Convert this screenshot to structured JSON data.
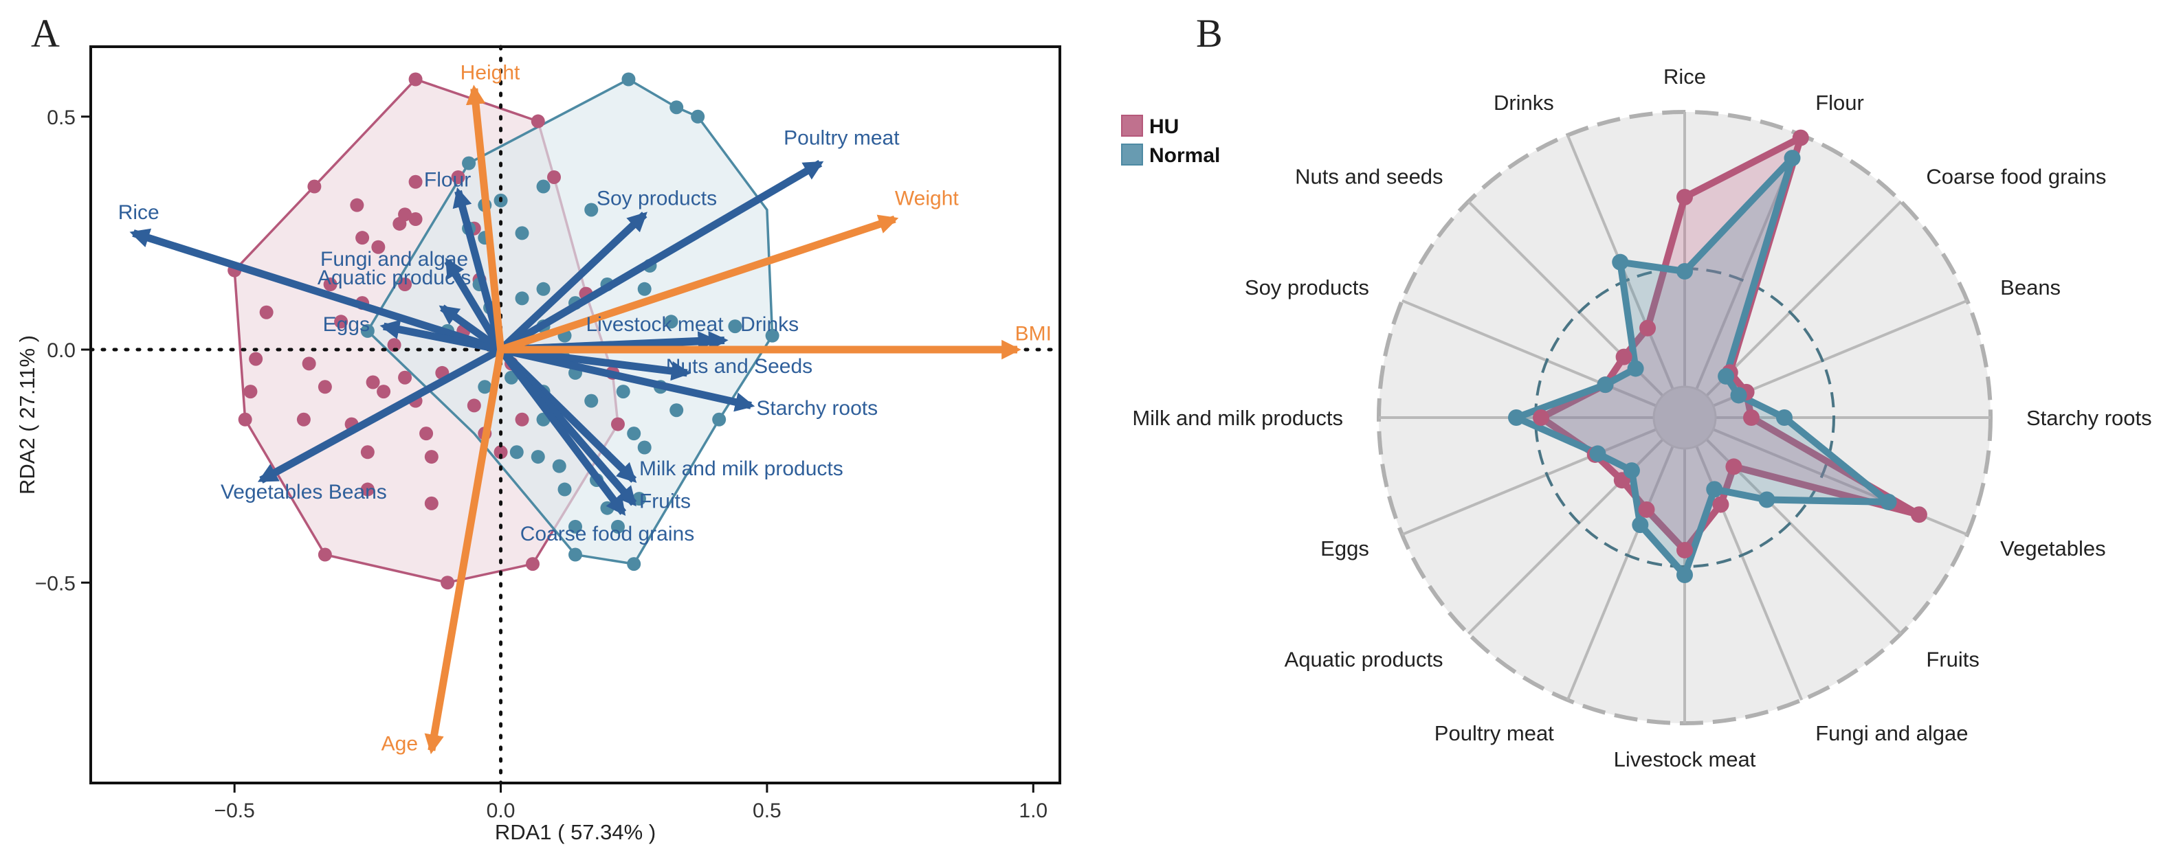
{
  "panels": {
    "a_label": "A",
    "b_label": "B"
  },
  "colors": {
    "hu": "#b5587a",
    "normal": "#4d8aa3",
    "hu_fill": "#f2e3e8",
    "normal_fill": "#dde9ee",
    "nutrient_arrow": "#2f5f9a",
    "body_arrow": "#ef8a3c",
    "radar_bg": "#ececec",
    "grid": "#b9b9b9"
  },
  "chart_data": [
    {
      "type": "scatter",
      "title": "",
      "xlabel": "RDA1 ( 57.34% )",
      "ylabel": "RDA2 ( 27.11% )",
      "xlim": [
        -0.77,
        1.05
      ],
      "ylim": [
        -0.93,
        0.65
      ],
      "xticks": [
        -0.5,
        0.0,
        0.5,
        1.0
      ],
      "xtick_labels": [
        "−0.5",
        "0.0",
        "0.5",
        "1.0"
      ],
      "yticks": [
        -0.5,
        0.0,
        0.5
      ],
      "ytick_labels": [
        "−0.5",
        "0.0",
        "0.5"
      ],
      "grid": false,
      "reference_lines": {
        "x": 0,
        "y": 0
      },
      "groups": [
        {
          "name": "HU",
          "hull": [
            [
              -0.16,
              0.58
            ],
            [
              0.07,
              0.49
            ],
            [
              0.1,
              0.37
            ],
            [
              0.16,
              0.12
            ],
            [
              0.21,
              -0.05
            ],
            [
              0.22,
              -0.16
            ],
            [
              0.06,
              -0.46
            ],
            [
              -0.1,
              -0.5
            ],
            [
              -0.33,
              -0.44
            ],
            [
              -0.48,
              -0.15
            ],
            [
              -0.5,
              0.17
            ]
          ],
          "points": [
            [
              -0.16,
              0.58
            ],
            [
              -0.35,
              0.35
            ],
            [
              -0.27,
              0.31
            ],
            [
              -0.18,
              0.29
            ],
            [
              -0.16,
              0.36
            ],
            [
              -0.08,
              0.37
            ],
            [
              -0.05,
              0.26
            ],
            [
              -0.23,
              0.22
            ],
            [
              -0.16,
              0.28
            ],
            [
              -0.19,
              0.27
            ],
            [
              -0.26,
              0.24
            ],
            [
              -0.32,
              0.14
            ],
            [
              -0.18,
              0.14
            ],
            [
              -0.04,
              0.15
            ],
            [
              -0.3,
              0.06
            ],
            [
              -0.44,
              0.08
            ],
            [
              -0.5,
              0.17
            ],
            [
              -0.46,
              -0.02
            ],
            [
              -0.36,
              -0.03
            ],
            [
              -0.24,
              -0.07
            ],
            [
              -0.18,
              -0.06
            ],
            [
              -0.11,
              -0.05
            ],
            [
              -0.47,
              -0.09
            ],
            [
              -0.33,
              -0.08
            ],
            [
              -0.22,
              -0.09
            ],
            [
              -0.16,
              -0.11
            ],
            [
              -0.48,
              -0.15
            ],
            [
              -0.37,
              -0.15
            ],
            [
              -0.28,
              -0.16
            ],
            [
              -0.14,
              -0.18
            ],
            [
              -0.05,
              -0.12
            ],
            [
              -0.03,
              -0.18
            ],
            [
              0.0,
              -0.22
            ],
            [
              0.04,
              -0.15
            ],
            [
              -0.25,
              -0.22
            ],
            [
              -0.13,
              -0.23
            ],
            [
              -0.25,
              -0.3
            ],
            [
              -0.13,
              -0.33
            ],
            [
              -0.33,
              -0.44
            ],
            [
              -0.1,
              -0.5
            ],
            [
              0.06,
              -0.46
            ],
            [
              0.07,
              0.49
            ],
            [
              0.1,
              0.37
            ],
            [
              0.16,
              0.12
            ],
            [
              0.21,
              -0.05
            ],
            [
              0.22,
              -0.16
            ],
            [
              -0.07,
              0.04
            ],
            [
              -0.2,
              0.01
            ],
            [
              -0.26,
              0.1
            ],
            [
              0.02,
              -0.03
            ]
          ]
        },
        {
          "name": "Normal",
          "hull": [
            [
              0.24,
              0.58
            ],
            [
              0.33,
              0.52
            ],
            [
              0.37,
              0.5
            ],
            [
              0.5,
              0.3
            ],
            [
              0.51,
              0.03
            ],
            [
              0.41,
              -0.15
            ],
            [
              0.25,
              -0.46
            ],
            [
              0.14,
              -0.44
            ],
            [
              -0.05,
              -0.18
            ],
            [
              -0.25,
              0.04
            ],
            [
              -0.06,
              0.4
            ]
          ],
          "points": [
            [
              0.24,
              0.58
            ],
            [
              0.33,
              0.52
            ],
            [
              0.17,
              0.3
            ],
            [
              0.08,
              0.35
            ],
            [
              0.0,
              0.32
            ],
            [
              -0.03,
              0.31
            ],
            [
              -0.06,
              0.26
            ],
            [
              -0.03,
              0.24
            ],
            [
              -0.04,
              0.14
            ],
            [
              -0.02,
              0.09
            ],
            [
              0.04,
              0.11
            ],
            [
              0.08,
              0.13
            ],
            [
              0.14,
              0.1
            ],
            [
              0.2,
              0.14
            ],
            [
              0.27,
              0.13
            ],
            [
              0.32,
              0.06
            ],
            [
              0.44,
              0.05
            ],
            [
              0.51,
              0.03
            ],
            [
              0.12,
              0.03
            ],
            [
              0.14,
              -0.05
            ],
            [
              0.23,
              -0.09
            ],
            [
              0.33,
              -0.13
            ],
            [
              0.02,
              -0.06
            ],
            [
              0.08,
              -0.09
            ],
            [
              0.25,
              -0.18
            ],
            [
              0.27,
              -0.21
            ],
            [
              0.03,
              -0.22
            ],
            [
              0.07,
              -0.23
            ],
            [
              0.11,
              -0.25
            ],
            [
              0.12,
              -0.3
            ],
            [
              0.18,
              -0.28
            ],
            [
              0.2,
              -0.34
            ],
            [
              0.26,
              -0.32
            ],
            [
              0.22,
              -0.38
            ],
            [
              0.14,
              -0.44
            ],
            [
              0.25,
              -0.46
            ],
            [
              0.14,
              -0.38
            ],
            [
              0.37,
              0.5
            ],
            [
              -0.06,
              0.4
            ],
            [
              -0.25,
              0.04
            ],
            [
              0.41,
              -0.15
            ],
            [
              0.28,
              0.18
            ],
            [
              -0.1,
              0.04
            ],
            [
              -0.03,
              -0.08
            ],
            [
              0.08,
              -0.15
            ],
            [
              0.17,
              -0.11
            ],
            [
              0.3,
              -0.08
            ],
            [
              0.04,
              0.25
            ],
            [
              0.08,
              0.05
            ],
            [
              0.12,
              -0.02
            ]
          ]
        }
      ],
      "nutrient_vectors": [
        {
          "name": "Rice",
          "x": -0.69,
          "y": 0.25,
          "label_x": -0.68,
          "label_y": 0.28,
          "anchor": "middle"
        },
        {
          "name": "Flour",
          "x": -0.08,
          "y": 0.34,
          "label_x": -0.1,
          "label_y": 0.35,
          "anchor": "middle"
        },
        {
          "name": "Fungi and algae",
          "x": -0.1,
          "y": 0.19,
          "label_x": -0.2,
          "label_y": 0.18,
          "anchor": "middle"
        },
        {
          "name": "Aquatic products",
          "x": -0.11,
          "y": 0.09,
          "label_x": -0.2,
          "label_y": 0.14,
          "anchor": "middle"
        },
        {
          "name": "Eggs",
          "x": -0.22,
          "y": 0.05,
          "label_x": -0.29,
          "label_y": 0.04,
          "anchor": "middle"
        },
        {
          "name": "Vegetables Beans",
          "x": -0.45,
          "y": -0.28,
          "label_x": -0.37,
          "label_y": -0.32,
          "anchor": "middle"
        },
        {
          "name": "Poultry meat",
          "x": 0.6,
          "y": 0.4,
          "label_x": 0.64,
          "label_y": 0.44,
          "anchor": "middle"
        },
        {
          "name": "Soy products",
          "x": 0.27,
          "y": 0.29,
          "label_x": 0.18,
          "label_y": 0.31,
          "anchor": "start"
        },
        {
          "name": "Livestock meat",
          "x": 0.42,
          "y": 0.02,
          "label_x": 0.16,
          "label_y": 0.04,
          "anchor": "start"
        },
        {
          "name": "Drinks",
          "x": 0.4,
          "y": 0.02,
          "label_x": 0.45,
          "label_y": 0.04,
          "anchor": "start"
        },
        {
          "name": "Nuts and Seeds",
          "x": 0.35,
          "y": -0.05,
          "label_x": 0.31,
          "label_y": -0.05,
          "anchor": "start"
        },
        {
          "name": "Starchy roots",
          "x": 0.47,
          "y": -0.12,
          "label_x": 0.48,
          "label_y": -0.14,
          "anchor": "start"
        },
        {
          "name": "Milk and milk products",
          "x": 0.25,
          "y": -0.28,
          "label_x": 0.26,
          "label_y": -0.27,
          "anchor": "start"
        },
        {
          "name": "Fruits",
          "x": 0.25,
          "y": -0.33,
          "label_x": 0.26,
          "label_y": -0.34,
          "anchor": "start"
        },
        {
          "name": "Coarse food grains",
          "x": 0.23,
          "y": -0.35,
          "label_x": 0.2,
          "label_y": -0.41,
          "anchor": "middle"
        }
      ],
      "body_vectors": [
        {
          "name": "Height",
          "x": -0.05,
          "y": 0.56,
          "label_x": -0.02,
          "label_y": 0.58,
          "anchor": "middle"
        },
        {
          "name": "Weight",
          "x": 0.74,
          "y": 0.28,
          "label_x": 0.8,
          "label_y": 0.31,
          "anchor": "middle"
        },
        {
          "name": "BMI",
          "x": 0.97,
          "y": 0.0,
          "label_x": 1.0,
          "label_y": 0.02,
          "anchor": "middle"
        },
        {
          "name": "Age",
          "x": -0.13,
          "y": -0.86,
          "label_x": -0.19,
          "label_y": -0.86,
          "anchor": "middle"
        }
      ]
    },
    {
      "type": "radar",
      "title": "",
      "legend": [
        "HU",
        "Normal"
      ],
      "legend_position": "top-left",
      "rmax": 1.0,
      "reference_circle": 0.43,
      "categories": [
        "Rice",
        "Flour",
        "Coarse food grains",
        "Beans",
        "Starchy roots",
        "Vegetables",
        "Fruits",
        "Fungi and algae",
        "Livestock meat",
        "Poultry meat",
        "Aquatic products",
        "Eggs",
        "Milk and milk products",
        "Soy products",
        "Nuts and seeds",
        "Drinks"
      ],
      "series": [
        {
          "name": "HU",
          "values": [
            0.69,
            0.99,
            0.12,
            0.13,
            0.13,
            0.81,
            0.14,
            0.23,
            0.37,
            0.25,
            0.21,
            0.24,
            0.41,
            0.2,
            0.2,
            0.24
          ]
        },
        {
          "name": "Normal",
          "values": [
            0.42,
            0.91,
            0.1,
            0.1,
            0.25,
            0.69,
            0.31,
            0.17,
            0.46,
            0.31,
            0.16,
            0.23,
            0.5,
            0.2,
            0.14,
            0.5
          ]
        }
      ]
    }
  ]
}
